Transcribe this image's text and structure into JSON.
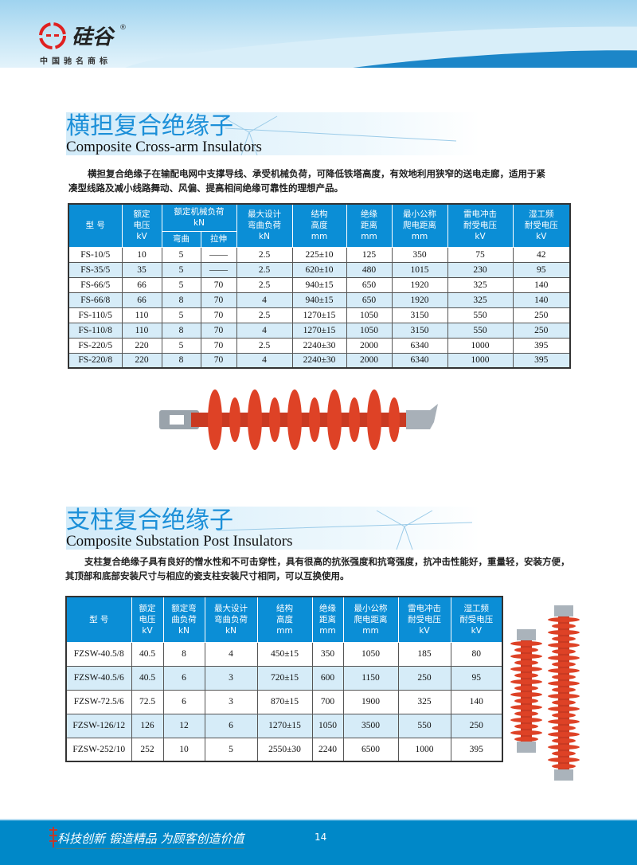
{
  "brand": {
    "name": "硅谷",
    "registered": "®",
    "subtitle": "中国驰名商标"
  },
  "section1": {
    "title_cn": "横担复合绝缘子",
    "title_en": "Composite Cross-arm Insulators",
    "description_line1": "横担复合绝缘子在输配电网中支撑导线、承受机械负荷，可降低铁塔高度，有效地利用狭窄的送电走廊，适用于紧",
    "description_line2": "凑型线路及减小线路舞动、风偏、提高相间绝缘可靠性的理想产品。",
    "headers": {
      "type": "型 号",
      "voltage": [
        "额定",
        "电压",
        "kV"
      ],
      "mech": [
        "额定机械负荷",
        "kN"
      ],
      "bend": "弯曲",
      "tensile": "拉伸",
      "max_bend": [
        "最大设计",
        "弯曲负荷",
        "kN"
      ],
      "height": [
        "结构",
        "高度",
        "mm"
      ],
      "insulation": [
        "绝缘",
        "距离",
        "mm"
      ],
      "creepage": [
        "最小公称",
        "爬电距离",
        "mm"
      ],
      "lightning": [
        "雷电冲击",
        "耐受电压",
        "kV"
      ],
      "wet": [
        "湿工频",
        "耐受电压",
        "kV"
      ]
    },
    "rows": [
      [
        "FS-10/5",
        "10",
        "5",
        "——",
        "2.5",
        "225±10",
        "125",
        "350",
        "75",
        "42"
      ],
      [
        "FS-35/5",
        "35",
        "5",
        "——",
        "2.5",
        "620±10",
        "480",
        "1015",
        "230",
        "95"
      ],
      [
        "FS-66/5",
        "66",
        "5",
        "70",
        "2.5",
        "940±15",
        "650",
        "1920",
        "325",
        "140"
      ],
      [
        "FS-66/8",
        "66",
        "8",
        "70",
        "4",
        "940±15",
        "650",
        "1920",
        "325",
        "140"
      ],
      [
        "FS-110/5",
        "110",
        "5",
        "70",
        "2.5",
        "1270±15",
        "1050",
        "3150",
        "550",
        "250"
      ],
      [
        "FS-110/8",
        "110",
        "8",
        "70",
        "4",
        "1270±15",
        "1050",
        "3150",
        "550",
        "250"
      ],
      [
        "FS-220/5",
        "220",
        "5",
        "70",
        "2.5",
        "2240±30",
        "2000",
        "6340",
        "1000",
        "395"
      ],
      [
        "FS-220/8",
        "220",
        "8",
        "70",
        "4",
        "2240±30",
        "2000",
        "6340",
        "1000",
        "395"
      ]
    ]
  },
  "section2": {
    "title_cn": "支柱复合绝缘子",
    "title_en": "Composite Substation Post Insulators",
    "description_line1": "支柱复合绝缘子具有良好的憎水性和不可击穿性，具有很高的抗张强度和抗弯强度，抗冲击性能好，重量轻，安装方便，",
    "description_line2": "其顶部和底部安装尺寸与相应的瓷支柱安装尺寸相同，可以互换使用。",
    "headers": {
      "type": "型 号",
      "voltage": [
        "额定",
        "电压",
        "kV"
      ],
      "bend_load": [
        "额定弯",
        "曲负荷",
        "kN"
      ],
      "max_bend": [
        "最大设计",
        "弯曲负荷",
        "kN"
      ],
      "height": [
        "结构",
        "高度",
        "mm"
      ],
      "insulation": [
        "绝缘",
        "距离",
        "mm"
      ],
      "creepage": [
        "最小公称",
        "爬电距离",
        "mm"
      ],
      "lightning": [
        "雷电冲击",
        "耐受电压",
        "kV"
      ],
      "wet": [
        "湿工频",
        "耐受电压",
        "kV"
      ]
    },
    "rows": [
      [
        "FZSW-40.5/8",
        "40.5",
        "8",
        "4",
        "450±15",
        "350",
        "1050",
        "185",
        "80"
      ],
      [
        "FZSW-40.5/6",
        "40.5",
        "6",
        "3",
        "720±15",
        "600",
        "1150",
        "250",
        "95"
      ],
      [
        "FZSW-72.5/6",
        "72.5",
        "6",
        "3",
        "870±15",
        "700",
        "1900",
        "325",
        "140"
      ],
      [
        "FZSW-126/12",
        "126",
        "12",
        "6",
        "1270±15",
        "1050",
        "3500",
        "550",
        "250"
      ],
      [
        "FZSW-252/10",
        "252",
        "10",
        "5",
        "2550±30",
        "2240",
        "6500",
        "1000",
        "395"
      ]
    ]
  },
  "footer": {
    "slogan": "科技创新  锻造精品  为顾客创造价值",
    "page_number": "14"
  },
  "colors": {
    "accent": "#0b8ed6",
    "footer": "#0088c8",
    "insulator": "#d8371f",
    "row_alt": "#d6ecf8"
  }
}
